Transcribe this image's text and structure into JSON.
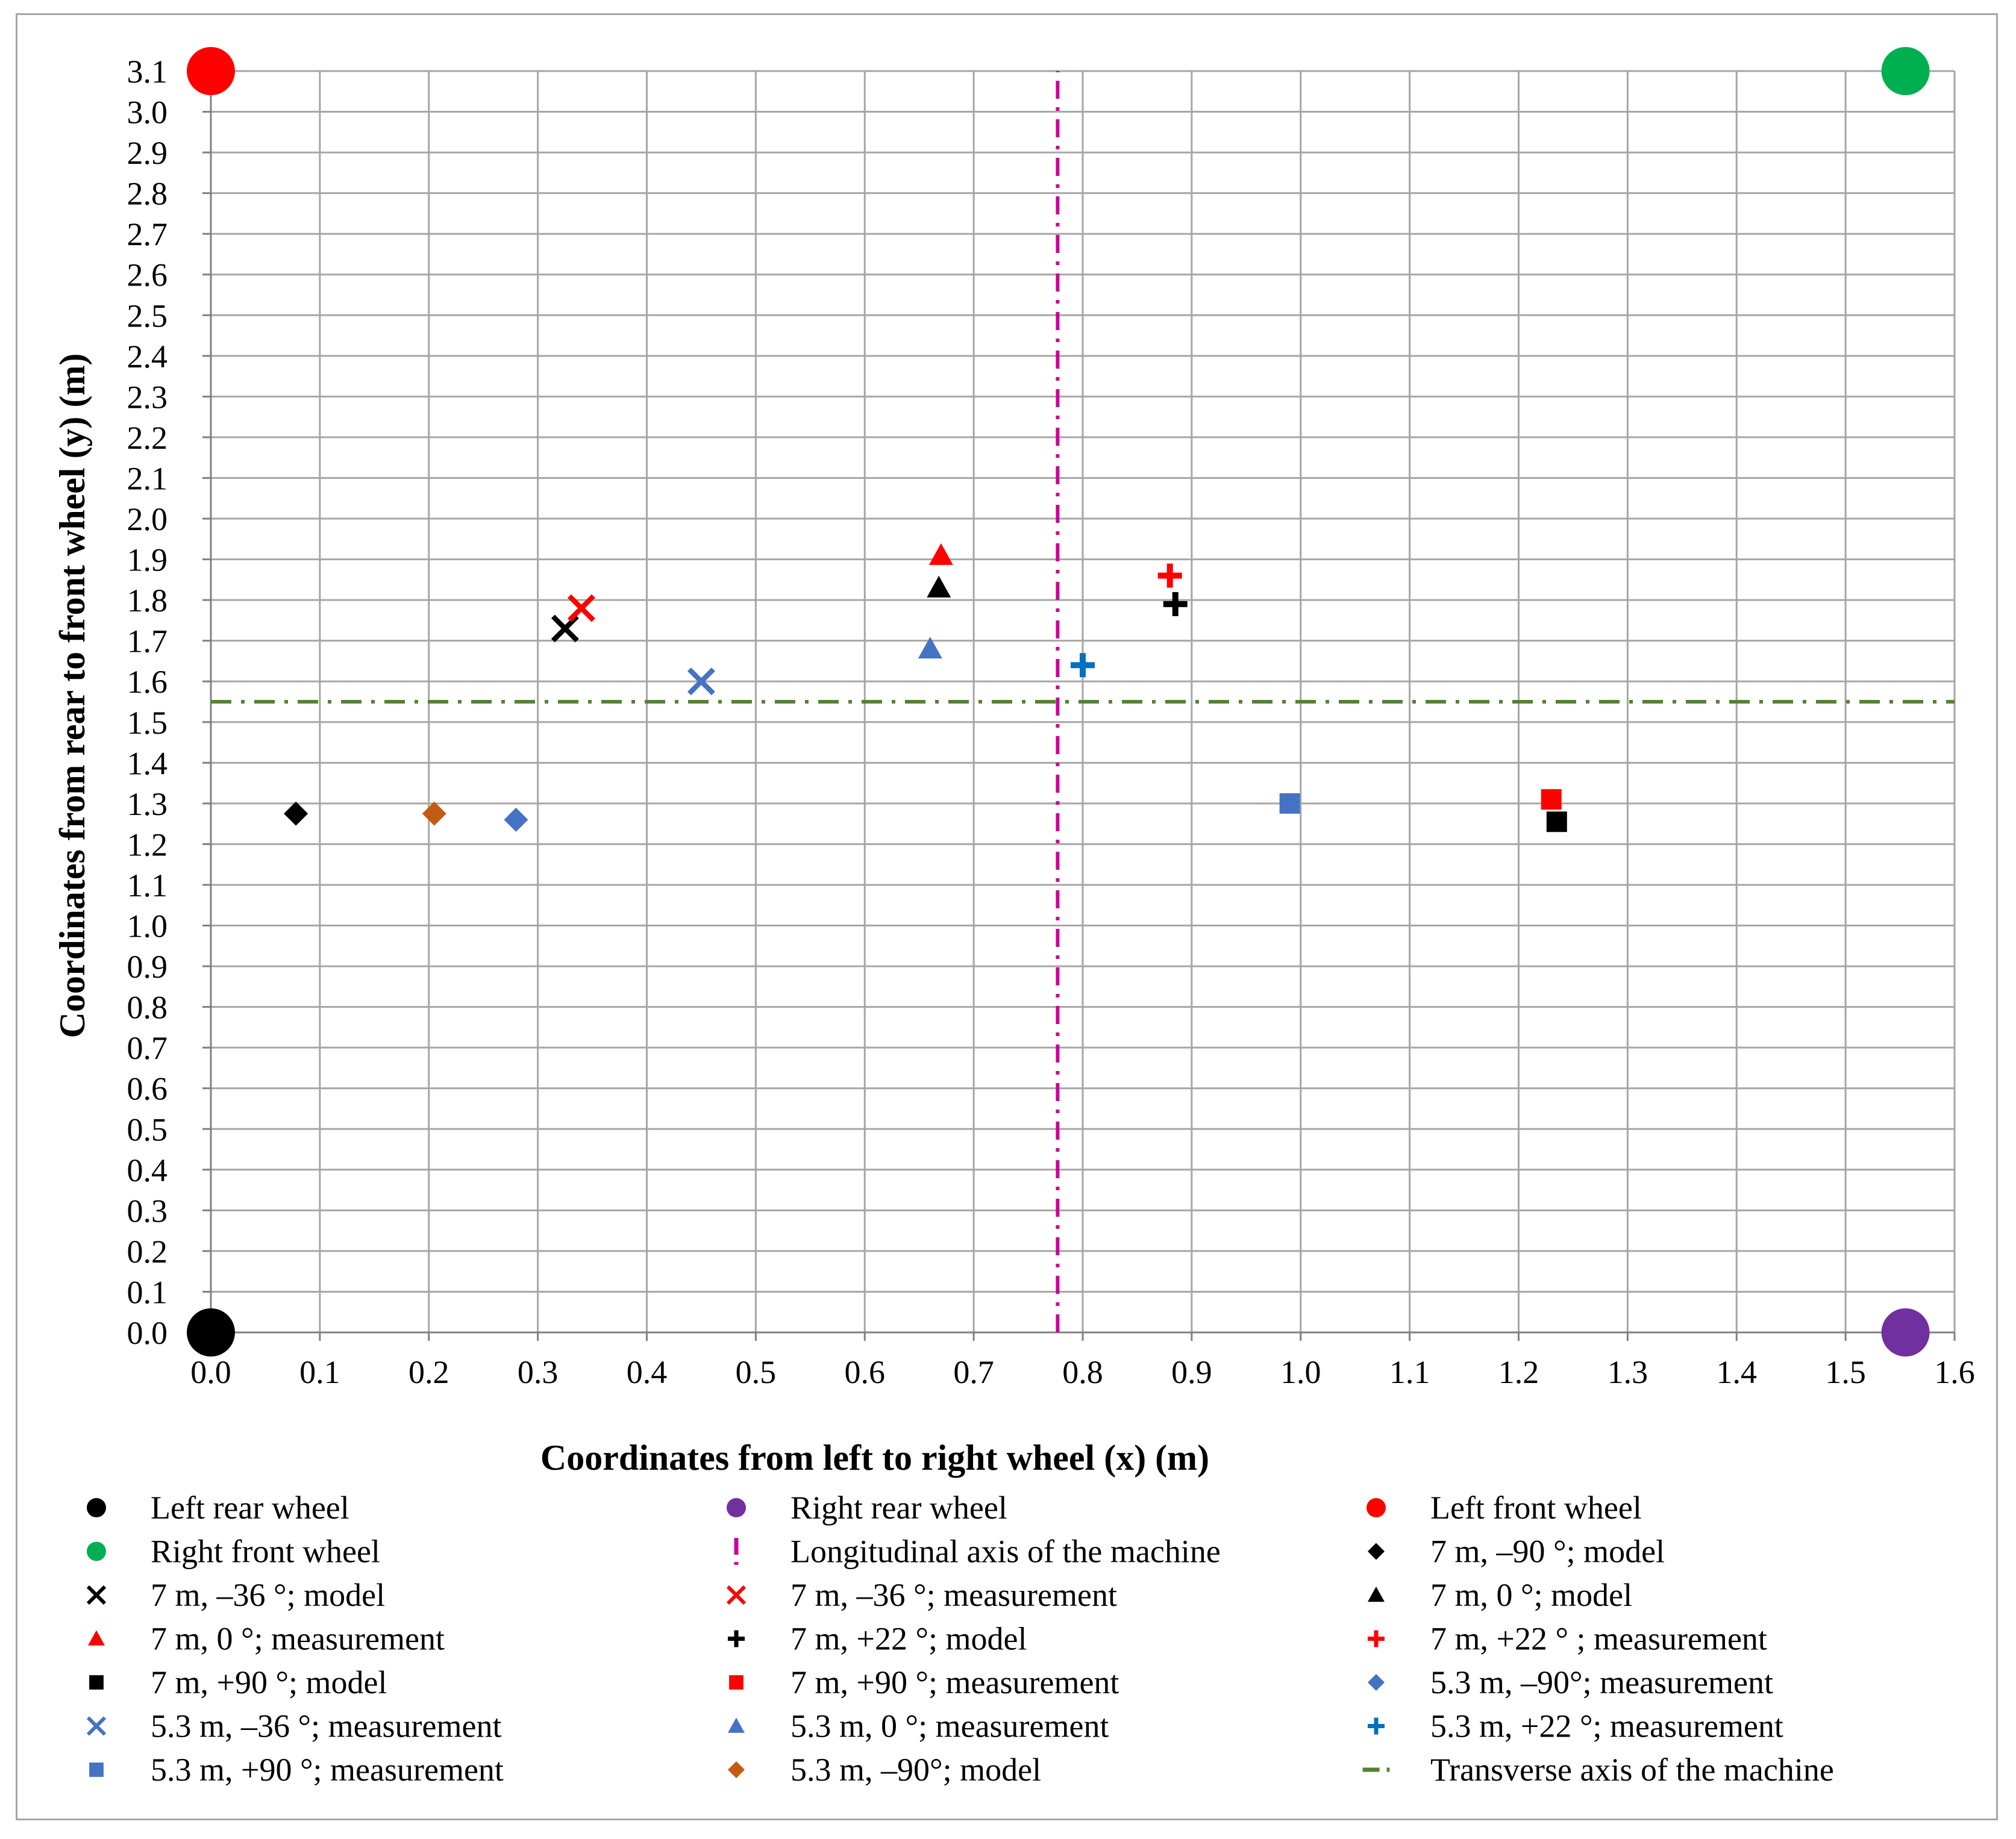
{
  "chart_data": {
    "type": "scatter",
    "title": "",
    "xlabel": "Coordinates from left to right wheel (x) (m)",
    "ylabel": "Coordinates from rear to front wheel (y) (m)",
    "xlim": [
      0.0,
      1.6
    ],
    "ylim": [
      0.0,
      3.1
    ],
    "x_ticks": [
      "0.0",
      "0.1",
      "0.2",
      "0.3",
      "0.4",
      "0.5",
      "0.6",
      "0.7",
      "0.8",
      "0.9",
      "1.0",
      "1.1",
      "1.2",
      "1.3",
      "1.4",
      "1.5",
      "1.6"
    ],
    "y_ticks": [
      "0.0",
      "0.1",
      "0.2",
      "0.3",
      "0.4",
      "0.5",
      "0.6",
      "0.7",
      "0.8",
      "0.9",
      "1.0",
      "1.1",
      "1.2",
      "1.3",
      "1.4",
      "1.5",
      "1.6",
      "1.7",
      "1.8",
      "1.9",
      "2.0",
      "2.1",
      "2.2",
      "2.3",
      "2.4",
      "2.5",
      "2.6",
      "2.7",
      "2.8",
      "2.9",
      "3.0",
      "3.1"
    ],
    "grid": true,
    "legend_position": "bottom",
    "series": [
      {
        "name": "Left rear wheel",
        "marker": "circle-large",
        "color": "#000000",
        "points": [
          [
            0.0,
            0.0
          ]
        ]
      },
      {
        "name": "Right rear wheel",
        "marker": "circle-large",
        "color": "#7030a0",
        "points": [
          [
            1.555,
            0.0
          ]
        ]
      },
      {
        "name": "Left front wheel",
        "marker": "circle-large",
        "color": "#ff0000",
        "points": [
          [
            0.0,
            3.1
          ]
        ]
      },
      {
        "name": "Right front wheel",
        "marker": "circle-large",
        "color": "#00b050",
        "points": [
          [
            1.555,
            3.1
          ]
        ]
      },
      {
        "name": "Longitudinal axis of the machine",
        "marker": "vline",
        "color": "#cc0099",
        "points": [
          [
            0.777,
            0.0
          ],
          [
            0.777,
            3.1
          ]
        ]
      },
      {
        "name": "7 m, –90 °; model",
        "marker": "diamond",
        "color": "#000000",
        "points": [
          [
            0.078,
            1.275
          ]
        ]
      },
      {
        "name": "7 m, –36 °; model",
        "marker": "x",
        "color": "#000000",
        "points": [
          [
            0.325,
            1.73
          ]
        ]
      },
      {
        "name": "7 m, –36 °;  measurement",
        "marker": "x",
        "color": "#ff0000",
        "points": [
          [
            0.34,
            1.78
          ]
        ]
      },
      {
        "name": "7 m, 0 °; model",
        "marker": "triangle",
        "color": "#000000",
        "points": [
          [
            0.668,
            1.83
          ]
        ]
      },
      {
        "name": "7 m, 0 °;  measurement",
        "marker": "triangle",
        "color": "#ff0000",
        "points": [
          [
            0.67,
            1.91
          ]
        ]
      },
      {
        "name": "7 m, +22 °; model",
        "marker": "plus",
        "color": "#000000",
        "points": [
          [
            0.885,
            1.79
          ]
        ]
      },
      {
        "name": "7 m, +22 ° ;  measurement",
        "marker": "plus",
        "color": "#ff0000",
        "points": [
          [
            0.88,
            1.86
          ]
        ]
      },
      {
        "name": "7 m, +90 °; model",
        "marker": "square",
        "color": "#000000",
        "points": [
          [
            1.235,
            1.255
          ]
        ]
      },
      {
        "name": "7 m, +90 °;  measurement",
        "marker": "square",
        "color": "#ff0000",
        "points": [
          [
            1.23,
            1.31
          ]
        ]
      },
      {
        "name": "5.3 m, –90°;  measurement",
        "marker": "diamond",
        "color": "#4472c4",
        "points": [
          [
            0.28,
            1.26
          ]
        ]
      },
      {
        "name": "5.3 m, –36 °;  measurement",
        "marker": "x",
        "color": "#4472c4",
        "points": [
          [
            0.45,
            1.6
          ]
        ]
      },
      {
        "name": "5.3 m, 0 °;  measurement",
        "marker": "triangle",
        "color": "#4472c4",
        "points": [
          [
            0.66,
            1.68
          ]
        ]
      },
      {
        "name": "5.3 m, +22 °;  measurement",
        "marker": "plus",
        "color": "#0070c0",
        "points": [
          [
            0.8,
            1.64
          ]
        ]
      },
      {
        "name": "5.3 m, +90 °;  measurement",
        "marker": "square",
        "color": "#4472c4",
        "points": [
          [
            0.99,
            1.3
          ]
        ]
      },
      {
        "name": "5.3 m, –90°; model",
        "marker": "diamond",
        "color": "#c55a11",
        "points": [
          [
            0.205,
            1.275
          ]
        ]
      },
      {
        "name": "Transverse axis of the machine",
        "marker": "hline",
        "color": "#548235",
        "points": [
          [
            0.0,
            1.55
          ],
          [
            1.6,
            1.55
          ]
        ]
      }
    ],
    "legend_order": [
      "Left rear wheel",
      "Right rear wheel",
      "Left front wheel",
      "Right front wheel",
      "Longitudinal axis of the machine",
      "7 m, –90 °; model",
      "7 m, –36 °; model",
      "7 m, –36 °;  measurement",
      "7 m, 0 °; model",
      "7 m, 0 °;  measurement",
      "7 m, +22 °; model",
      "7 m, +22 ° ;  measurement",
      "7 m, +90 °; model",
      "7 m, +90 °;  measurement",
      "5.3 m, –90°;  measurement",
      "5.3 m, –36 °;  measurement",
      "5.3 m, 0 °;  measurement",
      "5.3 m, +22 °;  measurement",
      "5.3 m, +90 °;  measurement",
      "5.3 m, –90°; model",
      "Transverse axis of the machine"
    ]
  }
}
